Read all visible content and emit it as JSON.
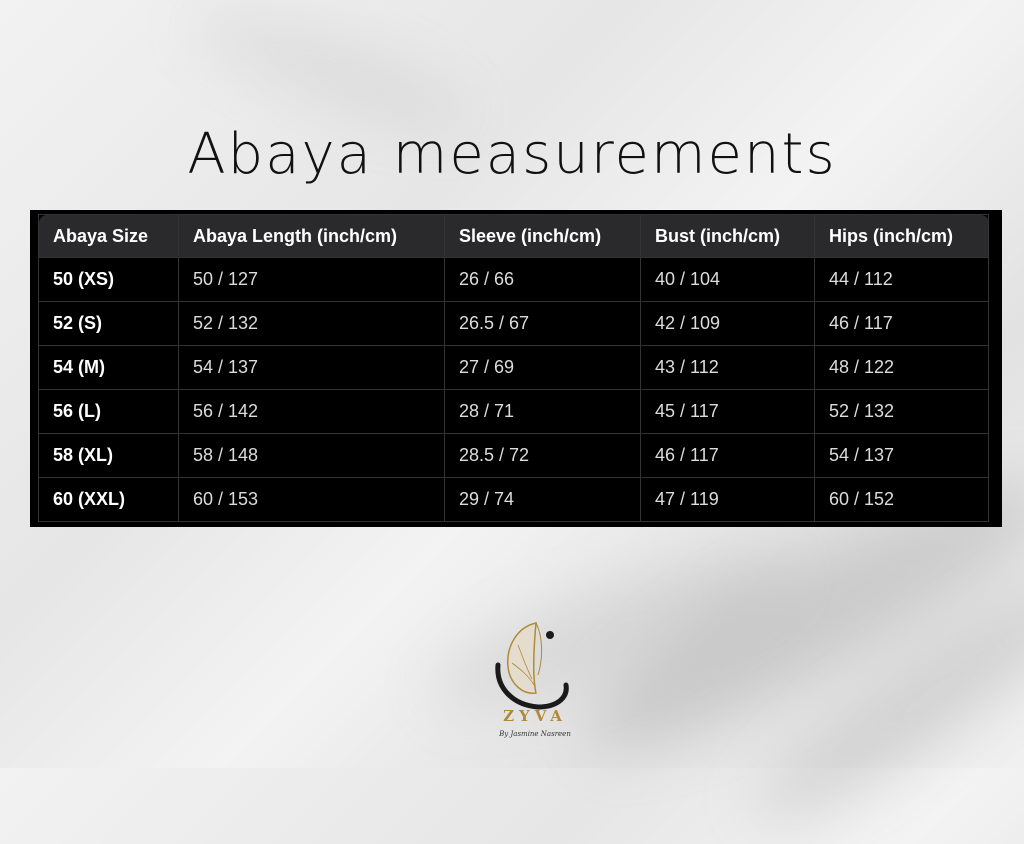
{
  "title": "Abaya measurements",
  "table": {
    "headers": [
      "Abaya Size",
      "Abaya Length (inch/cm)",
      "Sleeve (inch/cm)",
      "Bust (inch/cm)",
      "Hips (inch/cm)"
    ],
    "rows": [
      [
        "50 (XS)",
        "50 / 127",
        "26 / 66",
        "40 / 104",
        "44 / 112"
      ],
      [
        "52 (S)",
        "52 / 132",
        "26.5 / 67",
        "42 / 109",
        "46 / 117"
      ],
      [
        "54 (M)",
        "54 / 137",
        "27 / 69",
        "43 / 112",
        "48 / 122"
      ],
      [
        "56 (L)",
        "56 / 142",
        "28 / 71",
        "45 / 117",
        "52 / 132"
      ],
      [
        "58 (XL)",
        "58 / 148",
        "28.5 / 72",
        "46 / 117",
        "54 / 137"
      ],
      [
        "60 (XXL)",
        "60 / 153",
        "29 / 74",
        "47 / 119",
        "60 / 152"
      ]
    ]
  },
  "logo": {
    "brand": "ZYVA",
    "tagline": "By Jasmine Nasreen",
    "icon": "butterfly-icon",
    "accent_color": "#b08a3a"
  }
}
